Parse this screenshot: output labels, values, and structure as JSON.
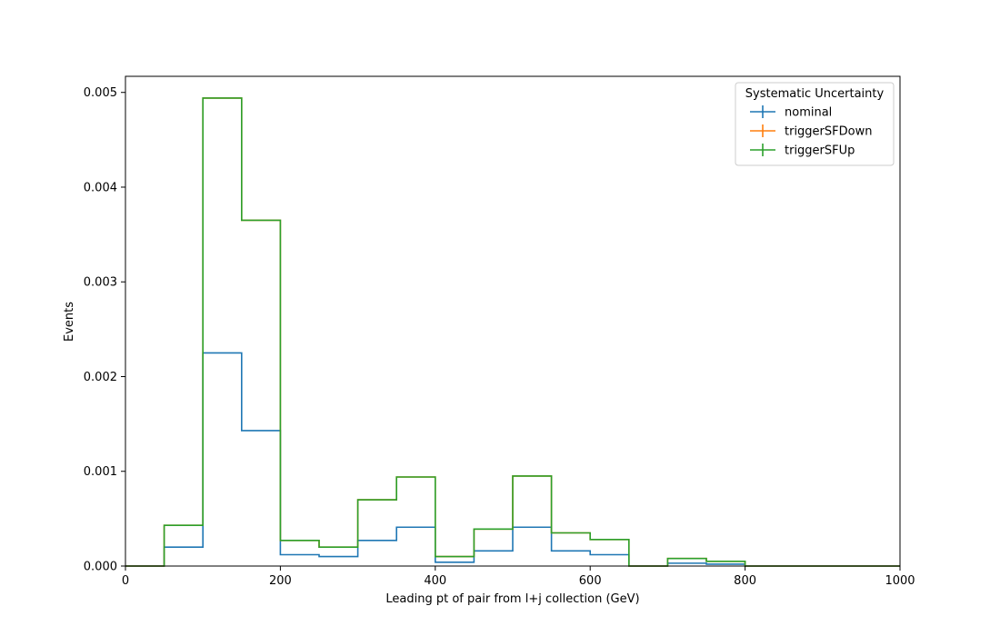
{
  "chart_data": {
    "type": "step-histogram",
    "xlabel": "Leading pt of pair from l+j collection (GeV)",
    "ylabel": "Events",
    "xlim": [
      0,
      1000
    ],
    "ylim": [
      0,
      0.00517
    ],
    "grid": false,
    "legend": {
      "title": "Systematic Uncertainty",
      "placement": "top-right"
    },
    "x_ticks": [
      {
        "value": 0,
        "label": "0"
      },
      {
        "value": 200,
        "label": "200"
      },
      {
        "value": 400,
        "label": "400"
      },
      {
        "value": 600,
        "label": "600"
      },
      {
        "value": 800,
        "label": "800"
      },
      {
        "value": 1000,
        "label": "1000"
      }
    ],
    "y_ticks": [
      {
        "value": 0,
        "label": "0.000"
      },
      {
        "value": 0.001,
        "label": "0.001"
      },
      {
        "value": 0.002,
        "label": "0.002"
      },
      {
        "value": 0.003,
        "label": "0.003"
      },
      {
        "value": 0.004,
        "label": "0.004"
      },
      {
        "value": 0.005,
        "label": "0.005"
      }
    ],
    "bin_edges": [
      0,
      50,
      100,
      150,
      200,
      250,
      300,
      350,
      400,
      450,
      500,
      550,
      600,
      650,
      700,
      750,
      800,
      850,
      900,
      950,
      1000
    ],
    "series": [
      {
        "name": "nominal",
        "color": "#1f77b4",
        "values": [
          0,
          0.0002,
          0.00225,
          0.00143,
          0.00012,
          0.0001,
          0.00027,
          0.00041,
          4e-05,
          0.00016,
          0.00041,
          0.00016,
          0.00012,
          0,
          3e-05,
          2e-05,
          0,
          0,
          0,
          0
        ]
      },
      {
        "name": "triggerSFDown",
        "color": "#ff7f0e",
        "values": [
          0,
          0.00043,
          0.00494,
          0.00365,
          0.00027,
          0.0002,
          0.0007,
          0.00094,
          0.0001,
          0.00039,
          0.00095,
          0.00035,
          0.00028,
          0,
          8e-05,
          5e-05,
          0,
          0,
          0,
          0
        ]
      },
      {
        "name": "triggerSFUp",
        "color": "#2ca02c",
        "values": [
          0,
          0.00043,
          0.00494,
          0.00365,
          0.00027,
          0.0002,
          0.0007,
          0.00094,
          0.0001,
          0.00039,
          0.00095,
          0.00035,
          0.00028,
          0,
          8e-05,
          5e-05,
          0,
          0,
          0,
          0
        ]
      }
    ]
  }
}
